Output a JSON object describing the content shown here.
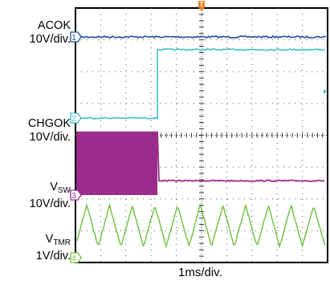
{
  "chart_data": {
    "type": "line",
    "xlabel": "1ms/div.",
    "grid": true,
    "divisions": {
      "x": 10,
      "y": 8
    },
    "trigger_marker": {
      "label": "T",
      "color": "#e8862a"
    },
    "series": [
      {
        "name": "ACOK",
        "unit": "10V/div.",
        "marker": "1",
        "color": "#1e4d9c",
        "description": "steady high level throughout",
        "level_div": 0.0
      },
      {
        "name": "CHGOK",
        "unit": "10V/div.",
        "marker": "2",
        "color": "#3fbfcc",
        "description": "low before step at ~3.2 div, then high",
        "low_div": 0.0,
        "high_div": 2.15,
        "step_x_div": 3.25
      },
      {
        "name": "V",
        "name_sub": "SW",
        "unit": "10V/div.",
        "marker": "3",
        "color": "#9a2c8c",
        "description": "dense switching band until ~3.2 div, then low flat",
        "band_top_div": 2.0,
        "band_bottom_div": 0.0,
        "flat_div": 0.45,
        "stop_x_div": 3.25
      },
      {
        "name": "V",
        "name_sub": "TMR",
        "unit": "1V/div.",
        "marker": "4",
        "color": "#6cc03a",
        "description": "triangle wave, period ~0.9 div, amplitude ~1.3 div",
        "center_div": 1.0,
        "amplitude_div": 0.65,
        "period_div": 0.9
      }
    ]
  }
}
